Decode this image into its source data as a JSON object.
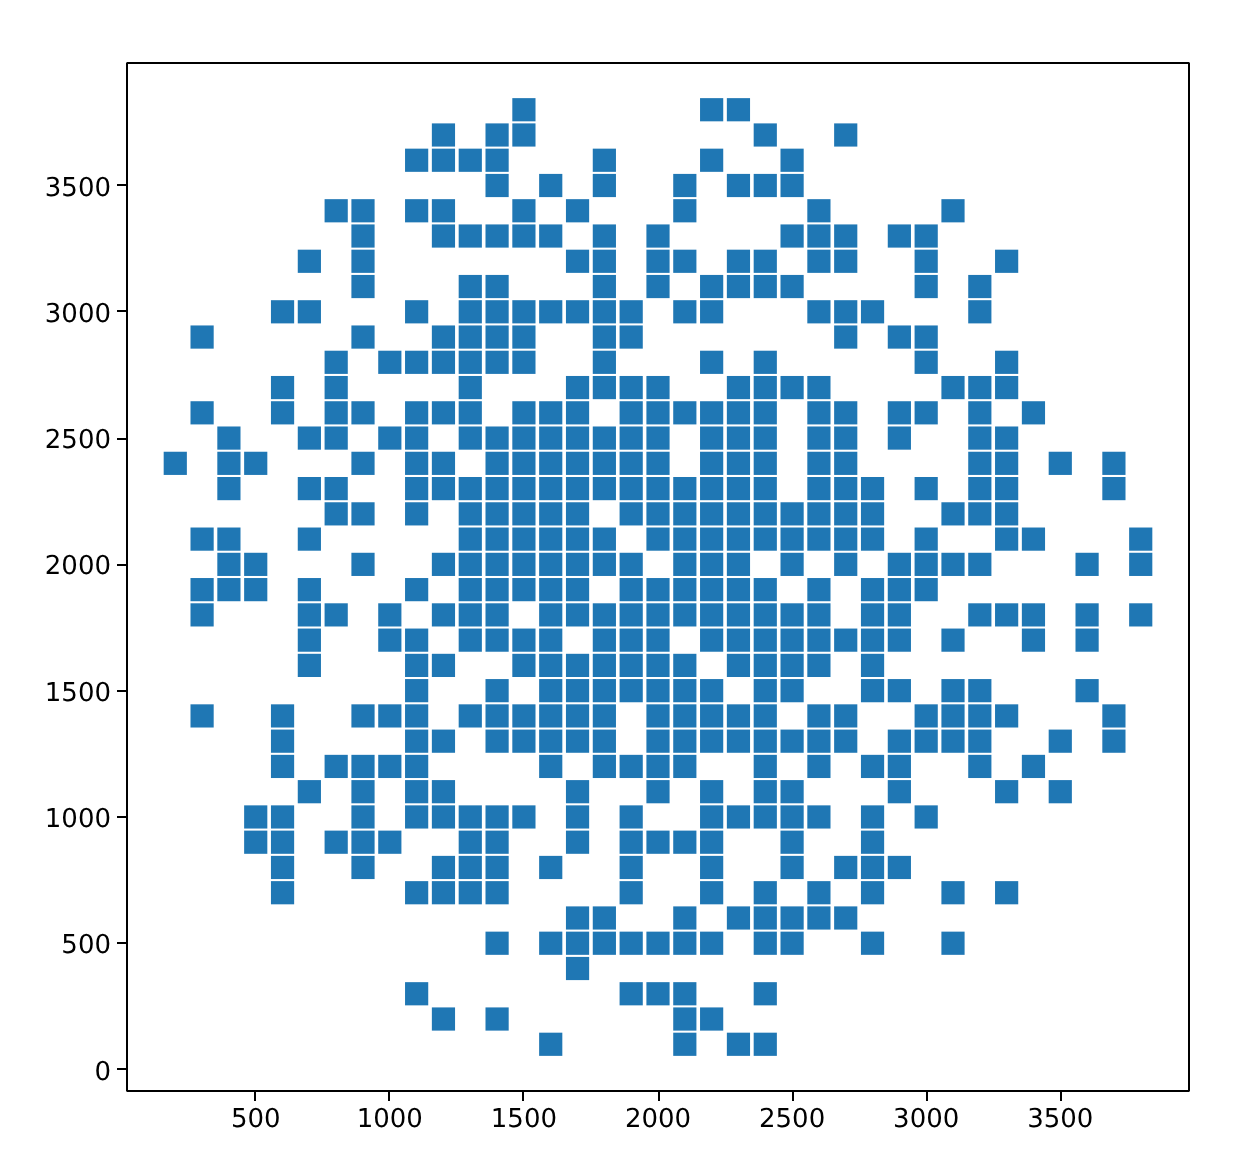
{
  "chart_data": {
    "type": "scatter",
    "color": "#1f77b4",
    "marker": "square",
    "grid": false,
    "xlim": [
      20,
      3980
    ],
    "ylim": [
      -85,
      3985
    ],
    "xticks": [
      500,
      1000,
      1500,
      2000,
      2500,
      3000,
      3500
    ],
    "yticks": [
      0,
      500,
      1000,
      1500,
      2000,
      2500,
      3000,
      3500
    ],
    "x": [
      1500,
      2200,
      2300,
      1200,
      1400,
      1500,
      2400,
      2700,
      1100,
      1200,
      1300,
      1400,
      1800,
      2200,
      2500,
      1400,
      1600,
      1800,
      2100,
      2300,
      2400,
      2500,
      800,
      900,
      1100,
      1200,
      1500,
      1700,
      2100,
      2600,
      3100,
      900,
      1200,
      1300,
      1400,
      1500,
      1600,
      1800,
      2000,
      2500,
      2600,
      2700,
      2900,
      3000,
      700,
      900,
      1700,
      1800,
      2000,
      2100,
      2300,
      2400,
      2600,
      2700,
      3000,
      3300,
      900,
      1300,
      1400,
      1800,
      2000,
      2200,
      2300,
      2400,
      2500,
      3000,
      3200,
      600,
      700,
      1100,
      1300,
      1400,
      1500,
      1600,
      1700,
      1800,
      1900,
      2100,
      2200,
      2600,
      2700,
      2800,
      3200,
      300,
      900,
      1200,
      1300,
      1400,
      1500,
      1800,
      1900,
      2700,
      2900,
      3000,
      800,
      1000,
      1100,
      1200,
      1300,
      1400,
      1500,
      1800,
      2200,
      2400,
      3000,
      3300,
      600,
      800,
      1300,
      1700,
      1800,
      1900,
      2000,
      2300,
      2400,
      2500,
      2600,
      3100,
      3200,
      3300,
      300,
      600,
      800,
      900,
      1100,
      1200,
      1300,
      1500,
      1600,
      1700,
      1900,
      2000,
      2100,
      2200,
      2300,
      2400,
      2600,
      2700,
      2900,
      3000,
      3200,
      3400,
      400,
      700,
      800,
      1000,
      1100,
      1300,
      1400,
      1500,
      1600,
      1700,
      1800,
      1900,
      2000,
      2200,
      2300,
      2400,
      2600,
      2700,
      2900,
      3200,
      3300,
      200,
      400,
      500,
      900,
      1100,
      1200,
      1400,
      1500,
      1600,
      1700,
      1800,
      1900,
      2000,
      2200,
      2300,
      2400,
      2600,
      2700,
      3200,
      3300,
      3500,
      3700,
      400,
      700,
      800,
      1100,
      1200,
      1300,
      1400,
      1500,
      1600,
      1700,
      1800,
      1900,
      2000,
      2100,
      2200,
      2300,
      2400,
      2600,
      2700,
      2800,
      3000,
      3200,
      3300,
      3700,
      800,
      900,
      1100,
      1300,
      1400,
      1500,
      1600,
      1700,
      1900,
      2000,
      2100,
      2200,
      2300,
      2400,
      2500,
      2600,
      2700,
      2800,
      3100,
      3200,
      3300,
      300,
      400,
      700,
      1300,
      1400,
      1500,
      1600,
      1700,
      1800,
      2000,
      2100,
      2200,
      2300,
      2400,
      2500,
      2600,
      2700,
      2800,
      3000,
      3300,
      3400,
      3800,
      400,
      500,
      900,
      1200,
      1300,
      1400,
      1500,
      1600,
      1700,
      1800,
      1900,
      2100,
      2200,
      2300,
      2500,
      2700,
      2900,
      3000,
      3100,
      3200,
      3600,
      3800,
      300,
      400,
      500,
      700,
      1100,
      1300,
      1400,
      1500,
      1600,
      1700,
      1900,
      2000,
      2100,
      2200,
      2300,
      2400,
      2600,
      2800,
      2900,
      3000,
      300,
      700,
      800,
      1000,
      1200,
      1300,
      1400,
      1600,
      1700,
      1800,
      1900,
      2000,
      2100,
      2200,
      2300,
      2400,
      2500,
      2600,
      2800,
      2900,
      3200,
      3300,
      3400,
      3600,
      3800,
      700,
      1000,
      1100,
      1300,
      1400,
      1500,
      1600,
      1800,
      1900,
      2000,
      2200,
      2300,
      2400,
      2500,
      2600,
      2700,
      2800,
      2900,
      3100,
      3400,
      3600,
      700,
      1100,
      1200,
      1500,
      1600,
      1700,
      1800,
      1900,
      2000,
      2100,
      2300,
      2400,
      2500,
      2600,
      2800,
      1100,
      1400,
      1600,
      1700,
      1800,
      1900,
      2000,
      2100,
      2200,
      2400,
      2500,
      2800,
      2900,
      3100,
      3200,
      3600,
      300,
      600,
      900,
      1000,
      1100,
      1300,
      1400,
      1500,
      1600,
      1700,
      1800,
      2000,
      2100,
      2200,
      2300,
      2400,
      2600,
      2700,
      3000,
      3100,
      3200,
      3300,
      3700,
      600,
      1100,
      1200,
      1400,
      1500,
      1600,
      1700,
      1800,
      2000,
      2100,
      2200,
      2300,
      2400,
      2500,
      2600,
      2700,
      2900,
      3000,
      3100,
      3200,
      3500,
      3700,
      600,
      800,
      900,
      1000,
      1100,
      1600,
      1800,
      1900,
      2000,
      2100,
      2400,
      2600,
      2800,
      2900,
      3200,
      3400,
      700,
      900,
      1100,
      1200,
      1700,
      2000,
      2200,
      2400,
      2500,
      2900,
      3300,
      3500,
      500,
      600,
      900,
      1100,
      1200,
      1300,
      1400,
      1500,
      1700,
      1900,
      2200,
      2300,
      2400,
      2500,
      2600,
      2800,
      3000,
      500,
      600,
      800,
      900,
      1000,
      1300,
      1400,
      1700,
      1900,
      2000,
      2100,
      2200,
      2500,
      2800,
      600,
      900,
      1200,
      1300,
      1400,
      1600,
      1900,
      2200,
      2500,
      2700,
      2800,
      2900,
      600,
      1100,
      1200,
      1300,
      1400,
      1900,
      2200,
      2400,
      2600,
      2800,
      3100,
      3300,
      1700,
      1800,
      2100,
      2300,
      2400,
      2500,
      2600,
      2700,
      1400,
      1600,
      1700,
      1800,
      1900,
      2000,
      2100,
      2200,
      2400,
      2500,
      2800,
      3100,
      1700,
      1100,
      1900,
      2000,
      2100,
      2400,
      1200,
      1400,
      2100,
      2200,
      1600,
      2100,
      2300,
      2400
    ],
    "values": [
      3800,
      3800,
      3800,
      3700,
      3700,
      3700,
      3700,
      3700,
      3600,
      3600,
      3600,
      3600,
      3600,
      3600,
      3600,
      3500,
      3500,
      3500,
      3500,
      3500,
      3500,
      3500,
      3400,
      3400,
      3400,
      3400,
      3400,
      3400,
      3400,
      3400,
      3400,
      3300,
      3300,
      3300,
      3300,
      3300,
      3300,
      3300,
      3300,
      3300,
      3300,
      3300,
      3300,
      3300,
      3200,
      3200,
      3200,
      3200,
      3200,
      3200,
      3200,
      3200,
      3200,
      3200,
      3200,
      3200,
      3100,
      3100,
      3100,
      3100,
      3100,
      3100,
      3100,
      3100,
      3100,
      3100,
      3100,
      3000,
      3000,
      3000,
      3000,
      3000,
      3000,
      3000,
      3000,
      3000,
      3000,
      3000,
      3000,
      3000,
      3000,
      3000,
      3000,
      2900,
      2900,
      2900,
      2900,
      2900,
      2900,
      2900,
      2900,
      2900,
      2900,
      2900,
      2800,
      2800,
      2800,
      2800,
      2800,
      2800,
      2800,
      2800,
      2800,
      2800,
      2800,
      2800,
      2700,
      2700,
      2700,
      2700,
      2700,
      2700,
      2700,
      2700,
      2700,
      2700,
      2700,
      2700,
      2700,
      2700,
      2600,
      2600,
      2600,
      2600,
      2600,
      2600,
      2600,
      2600,
      2600,
      2600,
      2600,
      2600,
      2600,
      2600,
      2600,
      2600,
      2600,
      2600,
      2600,
      2600,
      2600,
      2600,
      2500,
      2500,
      2500,
      2500,
      2500,
      2500,
      2500,
      2500,
      2500,
      2500,
      2500,
      2500,
      2500,
      2500,
      2500,
      2500,
      2500,
      2500,
      2500,
      2500,
      2500,
      2400,
      2400,
      2400,
      2400,
      2400,
      2400,
      2400,
      2400,
      2400,
      2400,
      2400,
      2400,
      2400,
      2400,
      2400,
      2400,
      2400,
      2400,
      2400,
      2400,
      2400,
      2400,
      2300,
      2300,
      2300,
      2300,
      2300,
      2300,
      2300,
      2300,
      2300,
      2300,
      2300,
      2300,
      2300,
      2300,
      2300,
      2300,
      2300,
      2300,
      2300,
      2300,
      2300,
      2300,
      2300,
      2300,
      2200,
      2200,
      2200,
      2200,
      2200,
      2200,
      2200,
      2200,
      2200,
      2200,
      2200,
      2200,
      2200,
      2200,
      2200,
      2200,
      2200,
      2200,
      2200,
      2200,
      2200,
      2100,
      2100,
      2100,
      2100,
      2100,
      2100,
      2100,
      2100,
      2100,
      2100,
      2100,
      2100,
      2100,
      2100,
      2100,
      2100,
      2100,
      2100,
      2100,
      2100,
      2100,
      2100,
      2000,
      2000,
      2000,
      2000,
      2000,
      2000,
      2000,
      2000,
      2000,
      2000,
      2000,
      2000,
      2000,
      2000,
      2000,
      2000,
      2000,
      2000,
      2000,
      2000,
      2000,
      2000,
      1900,
      1900,
      1900,
      1900,
      1900,
      1900,
      1900,
      1900,
      1900,
      1900,
      1900,
      1900,
      1900,
      1900,
      1900,
      1900,
      1900,
      1900,
      1900,
      1900,
      1800,
      1800,
      1800,
      1800,
      1800,
      1800,
      1800,
      1800,
      1800,
      1800,
      1800,
      1800,
      1800,
      1800,
      1800,
      1800,
      1800,
      1800,
      1800,
      1800,
      1800,
      1800,
      1800,
      1800,
      1800,
      1700,
      1700,
      1700,
      1700,
      1700,
      1700,
      1700,
      1700,
      1700,
      1700,
      1700,
      1700,
      1700,
      1700,
      1700,
      1700,
      1700,
      1700,
      1700,
      1700,
      1700,
      1600,
      1600,
      1600,
      1600,
      1600,
      1600,
      1600,
      1600,
      1600,
      1600,
      1600,
      1600,
      1600,
      1600,
      1600,
      1500,
      1500,
      1500,
      1500,
      1500,
      1500,
      1500,
      1500,
      1500,
      1500,
      1500,
      1500,
      1500,
      1500,
      1500,
      1500,
      1400,
      1400,
      1400,
      1400,
      1400,
      1400,
      1400,
      1400,
      1400,
      1400,
      1400,
      1400,
      1400,
      1400,
      1400,
      1400,
      1400,
      1400,
      1400,
      1400,
      1400,
      1400,
      1400,
      1300,
      1300,
      1300,
      1300,
      1300,
      1300,
      1300,
      1300,
      1300,
      1300,
      1300,
      1300,
      1300,
      1300,
      1300,
      1300,
      1300,
      1300,
      1300,
      1300,
      1300,
      1300,
      1200,
      1200,
      1200,
      1200,
      1200,
      1200,
      1200,
      1200,
      1200,
      1200,
      1200,
      1200,
      1200,
      1200,
      1200,
      1200,
      1100,
      1100,
      1100,
      1100,
      1100,
      1100,
      1100,
      1100,
      1100,
      1100,
      1100,
      1100,
      1000,
      1000,
      1000,
      1000,
      1000,
      1000,
      1000,
      1000,
      1000,
      1000,
      1000,
      1000,
      1000,
      1000,
      1000,
      1000,
      1000,
      900,
      900,
      900,
      900,
      900,
      900,
      900,
      900,
      900,
      900,
      900,
      900,
      900,
      900,
      800,
      800,
      800,
      800,
      800,
      800,
      800,
      800,
      800,
      800,
      800,
      800,
      700,
      700,
      700,
      700,
      700,
      700,
      700,
      700,
      700,
      700,
      700,
      700,
      600,
      600,
      600,
      600,
      600,
      600,
      600,
      600,
      500,
      500,
      500,
      500,
      500,
      500,
      500,
      500,
      500,
      500,
      500,
      500,
      400,
      300,
      300,
      300,
      300,
      300,
      200,
      200,
      200,
      200,
      100,
      100,
      100,
      100
    ]
  }
}
